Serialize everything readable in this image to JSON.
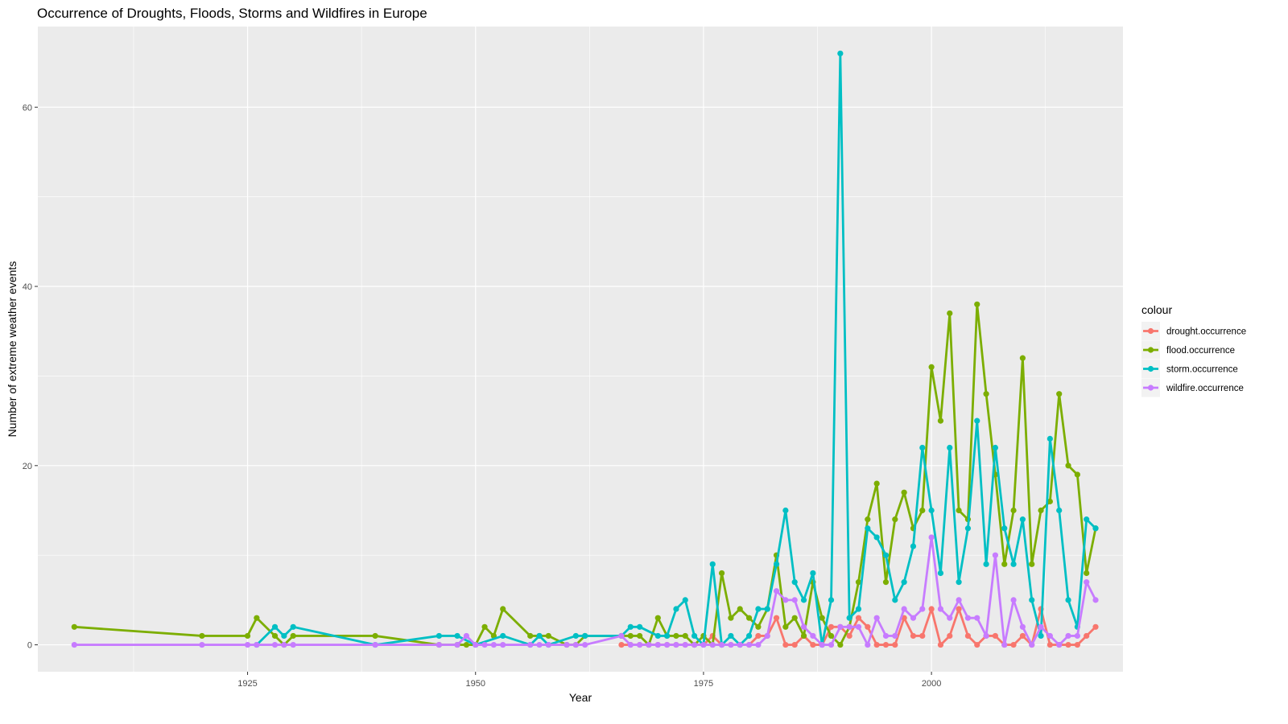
{
  "chart_data": {
    "type": "line",
    "title": "Occurrence of Droughts, Floods, Storms and Wildfires in Europe",
    "xlabel": "Year",
    "ylabel": "Number of extreme weather events",
    "xlim": [
      1902,
      2021
    ],
    "ylim": [
      -3,
      69
    ],
    "x_ticks": [
      1925,
      1950,
      1975,
      2000
    ],
    "y_ticks": [
      0,
      20,
      40,
      60
    ],
    "grid": true,
    "panel_color": "#ebebeb",
    "legend": {
      "title": "colour",
      "position": "right"
    },
    "series": [
      {
        "name": "drought.occurrence",
        "color": "#F8766D",
        "x": [
          1966,
          1967,
          1968,
          1969,
          1970,
          1971,
          1972,
          1973,
          1974,
          1975,
          1976,
          1977,
          1978,
          1979,
          1980,
          1981,
          1982,
          1983,
          1984,
          1985,
          1986,
          1987,
          1988,
          1989,
          1990,
          1991,
          1992,
          1993,
          1994,
          1995,
          1996,
          1997,
          1998,
          1999,
          2000,
          2001,
          2002,
          2003,
          2004,
          2005,
          2006,
          2007,
          2008,
          2009,
          2010,
          2011,
          2012,
          2013,
          2014,
          2015,
          2016,
          2017,
          2018
        ],
        "y": [
          0,
          0,
          0,
          0,
          0,
          0,
          0,
          0,
          0,
          0,
          1,
          0,
          0,
          0,
          0,
          1,
          1,
          3,
          0,
          0,
          1,
          0,
          0,
          2,
          2,
          1,
          3,
          2,
          0,
          0,
          0,
          3,
          1,
          1,
          4,
          0,
          1,
          4,
          1,
          0,
          1,
          1,
          0,
          0,
          1,
          0,
          4,
          0,
          0,
          0,
          0,
          1,
          2
        ]
      },
      {
        "name": "flood.occurrence",
        "color": "#7CAE00",
        "x": [
          1906,
          1920,
          1925,
          1926,
          1928,
          1929,
          1930,
          1939,
          1946,
          1948,
          1949,
          1950,
          1951,
          1952,
          1953,
          1956,
          1957,
          1958,
          1960,
          1961,
          1962,
          1966,
          1967,
          1968,
          1969,
          1970,
          1971,
          1972,
          1973,
          1974,
          1975,
          1976,
          1977,
          1978,
          1979,
          1980,
          1981,
          1982,
          1983,
          1984,
          1985,
          1986,
          1987,
          1988,
          1989,
          1990,
          1991,
          1992,
          1993,
          1994,
          1995,
          1996,
          1997,
          1998,
          1999,
          2000,
          2001,
          2002,
          2003,
          2004,
          2005,
          2006,
          2007,
          2008,
          2009,
          2010,
          2011,
          2012,
          2013,
          2014,
          2015,
          2016,
          2017,
          2018
        ],
        "y": [
          2,
          1,
          1,
          3,
          1,
          0,
          1,
          1,
          0,
          0,
          0,
          0,
          2,
          1,
          4,
          1,
          1,
          1,
          0,
          0,
          1,
          1,
          1,
          1,
          0,
          3,
          1,
          1,
          1,
          0,
          1,
          0,
          8,
          3,
          4,
          3,
          2,
          4,
          10,
          2,
          3,
          1,
          7,
          3,
          1,
          0,
          2,
          7,
          14,
          18,
          7,
          14,
          17,
          13,
          15,
          31,
          25,
          37,
          15,
          14,
          38,
          28,
          19,
          9,
          15,
          32,
          9,
          15,
          16,
          28,
          20,
          19,
          8,
          13
        ]
      },
      {
        "name": "storm.occurrence",
        "color": "#00BFC4",
        "x": [
          1926,
          1928,
          1929,
          1930,
          1939,
          1946,
          1948,
          1950,
          1953,
          1956,
          1957,
          1958,
          1961,
          1962,
          1966,
          1967,
          1968,
          1970,
          1971,
          1972,
          1973,
          1974,
          1975,
          1976,
          1977,
          1978,
          1979,
          1980,
          1981,
          1982,
          1983,
          1984,
          1985,
          1986,
          1987,
          1988,
          1989,
          1990,
          1991,
          1992,
          1993,
          1994,
          1995,
          1996,
          1997,
          1998,
          1999,
          2000,
          2001,
          2002,
          2003,
          2004,
          2005,
          2006,
          2007,
          2008,
          2009,
          2010,
          2011,
          2012,
          2013,
          2014,
          2015,
          2016,
          2017,
          2018
        ],
        "y": [
          0,
          2,
          1,
          2,
          0,
          1,
          1,
          0,
          1,
          0,
          1,
          0,
          1,
          1,
          1,
          2,
          2,
          1,
          1,
          4,
          5,
          1,
          0,
          9,
          0,
          1,
          0,
          1,
          4,
          4,
          9,
          15,
          7,
          5,
          8,
          0,
          5,
          66,
          3,
          4,
          13,
          12,
          10,
          5,
          7,
          11,
          22,
          15,
          8,
          22,
          7,
          13,
          25,
          9,
          22,
          13,
          9,
          14,
          5,
          1,
          23,
          15,
          5,
          2,
          14,
          13
        ]
      },
      {
        "name": "wildfire.occurrence",
        "color": "#C77CFF",
        "x": [
          1906,
          1920,
          1925,
          1926,
          1928,
          1929,
          1930,
          1939,
          1946,
          1948,
          1949,
          1950,
          1951,
          1952,
          1953,
          1956,
          1957,
          1958,
          1960,
          1961,
          1962,
          1966,
          1967,
          1968,
          1969,
          1970,
          1971,
          1972,
          1973,
          1974,
          1975,
          1976,
          1977,
          1978,
          1979,
          1980,
          1981,
          1982,
          1983,
          1984,
          1985,
          1986,
          1987,
          1988,
          1989,
          1990,
          1991,
          1992,
          1993,
          1994,
          1995,
          1996,
          1997,
          1998,
          1999,
          2000,
          2001,
          2002,
          2003,
          2004,
          2005,
          2006,
          2007,
          2008,
          2009,
          2010,
          2011,
          2012,
          2013,
          2014,
          2015,
          2016,
          2017,
          2018
        ],
        "y": [
          0,
          0,
          0,
          0,
          0,
          0,
          0,
          0,
          0,
          0,
          1,
          0,
          0,
          0,
          0,
          0,
          0,
          0,
          0,
          0,
          0,
          1,
          0,
          0,
          0,
          0,
          0,
          0,
          0,
          0,
          0,
          0,
          0,
          0,
          0,
          0,
          0,
          1,
          6,
          5,
          5,
          2,
          1,
          0,
          0,
          2,
          2,
          2,
          0,
          3,
          1,
          1,
          4,
          3,
          4,
          12,
          4,
          3,
          5,
          3,
          3,
          1,
          10,
          0,
          5,
          2,
          0,
          2,
          1,
          0,
          1,
          1,
          7,
          5
        ]
      }
    ]
  }
}
